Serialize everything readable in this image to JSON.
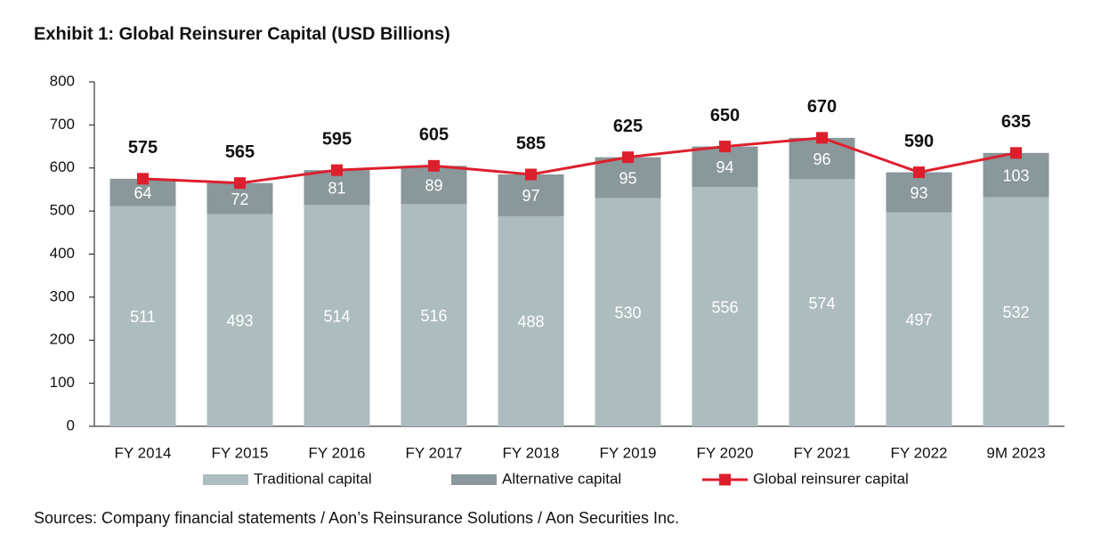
{
  "chart_data": {
    "type": "bar",
    "stacked": true,
    "title": "Exhibit 1: Global Reinsurer Capital (USD Billions)",
    "source": "Sources: Company financial statements / Aon’s Reinsurance Solutions / Aon Securities Inc.",
    "categories": [
      "FY 2014",
      "FY 2015",
      "FY 2016",
      "FY 2017",
      "FY 2018",
      "FY 2019",
      "FY 2020",
      "FY 2021",
      "FY 2022",
      "9M 2023"
    ],
    "series": [
      {
        "name": "Traditional capital",
        "color": "#adbcbf",
        "values": [
          511,
          493,
          514,
          516,
          488,
          530,
          556,
          574,
          497,
          532
        ]
      },
      {
        "name": "Alternative capital",
        "color": "#8a979b",
        "values": [
          64,
          72,
          81,
          89,
          97,
          95,
          94,
          96,
          93,
          103
        ]
      },
      {
        "name": "Global reinsurer capital",
        "type": "line",
        "color": "#dd1f2d",
        "values": [
          575,
          565,
          595,
          605,
          585,
          625,
          650,
          670,
          590,
          635
        ]
      }
    ],
    "ylim": [
      0,
      800
    ],
    "yticks": [
      0,
      100,
      200,
      300,
      400,
      500,
      600,
      700,
      800
    ],
    "grid": false
  }
}
